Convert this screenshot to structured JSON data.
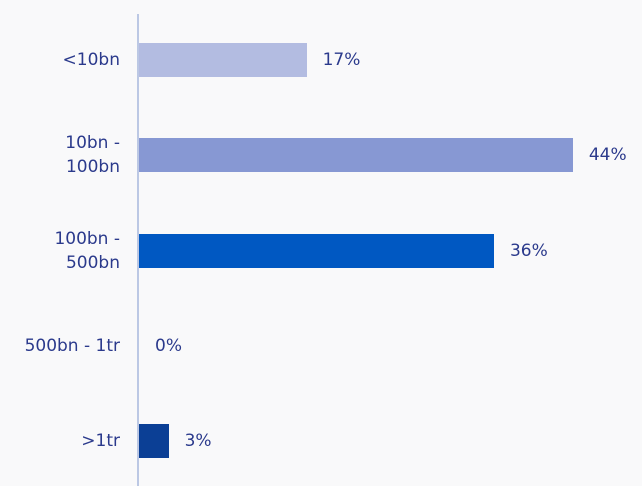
{
  "chart_data": {
    "type": "bar",
    "orientation": "horizontal",
    "categories": [
      "<10bn",
      "10bn -\n100bn",
      "100bn -\n500bn",
      "500bn - 1tr",
      ">1tr"
    ],
    "values": [
      17,
      44,
      36,
      0,
      3
    ],
    "value_labels": [
      "17%",
      "44%",
      "36%",
      "0%",
      "3%"
    ],
    "colors": [
      "#b3bce1",
      "#8798d3",
      "#0058c2",
      "#0058c2",
      "#0b3f95"
    ]
  }
}
